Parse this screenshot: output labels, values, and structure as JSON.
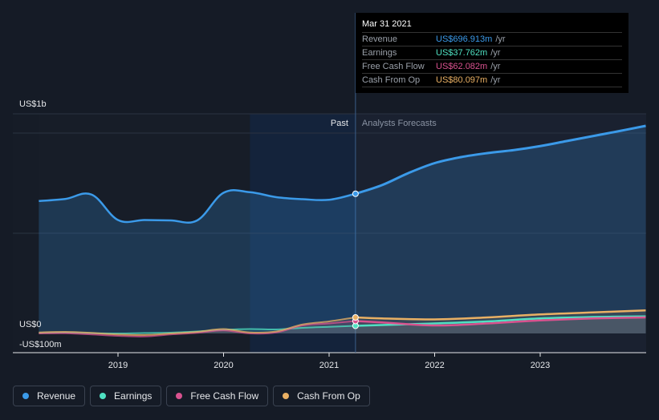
{
  "chart_data": {
    "type": "area",
    "title": "",
    "xlabel": "",
    "ylabel": "",
    "x_ticks": [
      "2019",
      "2020",
      "2021",
      "2022",
      "2023"
    ],
    "y_ticks": [
      {
        "label": "US$1b",
        "value": 1000
      },
      {
        "label": "US$0",
        "value": 0
      },
      {
        "label": "-US$100m",
        "value": -100
      }
    ],
    "ylim": [
      -100,
      1100
    ],
    "units": "US$ millions",
    "past_label": "Past",
    "forecast_label": "Analysts Forecasts",
    "divider_date": 2021.25,
    "highlight_range": [
      2020.25,
      2021.25
    ],
    "series": [
      {
        "name": "Revenue",
        "color": "#3b9ae9",
        "past": [
          [
            2018.25,
            661
          ],
          [
            2018.5,
            671
          ],
          [
            2018.75,
            693
          ],
          [
            2019.0,
            566
          ],
          [
            2019.25,
            566
          ],
          [
            2019.5,
            564
          ],
          [
            2019.75,
            564
          ],
          [
            2020.0,
            702
          ],
          [
            2020.25,
            705
          ],
          [
            2020.5,
            680
          ],
          [
            2020.75,
            670
          ],
          [
            2021.0,
            667
          ],
          [
            2021.25,
            697
          ]
        ],
        "forecast": [
          [
            2021.25,
            697
          ],
          [
            2021.5,
            740
          ],
          [
            2021.75,
            800
          ],
          [
            2022.0,
            850
          ],
          [
            2022.25,
            880
          ],
          [
            2022.5,
            900
          ],
          [
            2022.75,
            915
          ],
          [
            2023.0,
            935
          ],
          [
            2023.25,
            960
          ],
          [
            2023.5,
            985
          ],
          [
            2023.75,
            1010
          ],
          [
            2024.0,
            1036
          ]
        ]
      },
      {
        "name": "Earnings",
        "color": "#4fe1c2",
        "past": [
          [
            2018.25,
            2
          ],
          [
            2018.5,
            4
          ],
          [
            2018.75,
            1
          ],
          [
            2019.0,
            0
          ],
          [
            2019.25,
            2
          ],
          [
            2019.5,
            4
          ],
          [
            2019.75,
            10
          ],
          [
            2020.0,
            18
          ],
          [
            2020.25,
            22
          ],
          [
            2020.5,
            20
          ],
          [
            2020.75,
            28
          ],
          [
            2021.0,
            33
          ],
          [
            2021.25,
            38
          ]
        ],
        "forecast": [
          [
            2021.25,
            38
          ],
          [
            2021.5,
            42
          ],
          [
            2022.0,
            50
          ],
          [
            2022.5,
            60
          ],
          [
            2023.0,
            75
          ],
          [
            2023.5,
            82
          ],
          [
            2024.0,
            85
          ]
        ]
      },
      {
        "name": "Free Cash Flow",
        "color": "#d9528f",
        "past": [
          [
            2018.25,
            0
          ],
          [
            2018.5,
            1
          ],
          [
            2018.75,
            -5
          ],
          [
            2019.0,
            -12
          ],
          [
            2019.25,
            -15
          ],
          [
            2019.5,
            -5
          ],
          [
            2019.75,
            3
          ],
          [
            2020.0,
            15
          ],
          [
            2020.25,
            0
          ],
          [
            2020.5,
            5
          ],
          [
            2020.75,
            40
          ],
          [
            2021.0,
            50
          ],
          [
            2021.25,
            62
          ]
        ],
        "forecast": [
          [
            2021.25,
            62
          ],
          [
            2021.5,
            55
          ],
          [
            2022.0,
            40
          ],
          [
            2022.5,
            50
          ],
          [
            2023.0,
            65
          ],
          [
            2023.5,
            75
          ],
          [
            2024.0,
            80
          ]
        ]
      },
      {
        "name": "Cash From Op",
        "color": "#e9b064",
        "past": [
          [
            2018.25,
            5
          ],
          [
            2018.5,
            8
          ],
          [
            2018.75,
            3
          ],
          [
            2019.0,
            -5
          ],
          [
            2019.25,
            -8
          ],
          [
            2019.5,
            0
          ],
          [
            2019.75,
            8
          ],
          [
            2020.0,
            22
          ],
          [
            2020.25,
            5
          ],
          [
            2020.5,
            10
          ],
          [
            2020.75,
            45
          ],
          [
            2021.0,
            60
          ],
          [
            2021.25,
            80
          ]
        ],
        "forecast": [
          [
            2021.25,
            80
          ],
          [
            2021.5,
            75
          ],
          [
            2022.0,
            70
          ],
          [
            2022.5,
            80
          ],
          [
            2023.0,
            95
          ],
          [
            2023.5,
            105
          ],
          [
            2024.0,
            115
          ]
        ]
      }
    ]
  },
  "tooltip": {
    "date": "Mar 31 2021",
    "rows": [
      {
        "label": "Revenue",
        "value": "US$696.913m",
        "unit": "/yr",
        "color": "#3b9ae9"
      },
      {
        "label": "Earnings",
        "value": "US$37.762m",
        "unit": "/yr",
        "color": "#4fe1c2"
      },
      {
        "label": "Free Cash Flow",
        "value": "US$62.082m",
        "unit": "/yr",
        "color": "#d9528f"
      },
      {
        "label": "Cash From Op",
        "value": "US$80.097m",
        "unit": "/yr",
        "color": "#e9b064"
      }
    ]
  },
  "legend": [
    {
      "label": "Revenue",
      "color": "#3b9ae9"
    },
    {
      "label": "Earnings",
      "color": "#4fe1c2"
    },
    {
      "label": "Free Cash Flow",
      "color": "#d9528f"
    },
    {
      "label": "Cash From Op",
      "color": "#e9b064"
    }
  ]
}
